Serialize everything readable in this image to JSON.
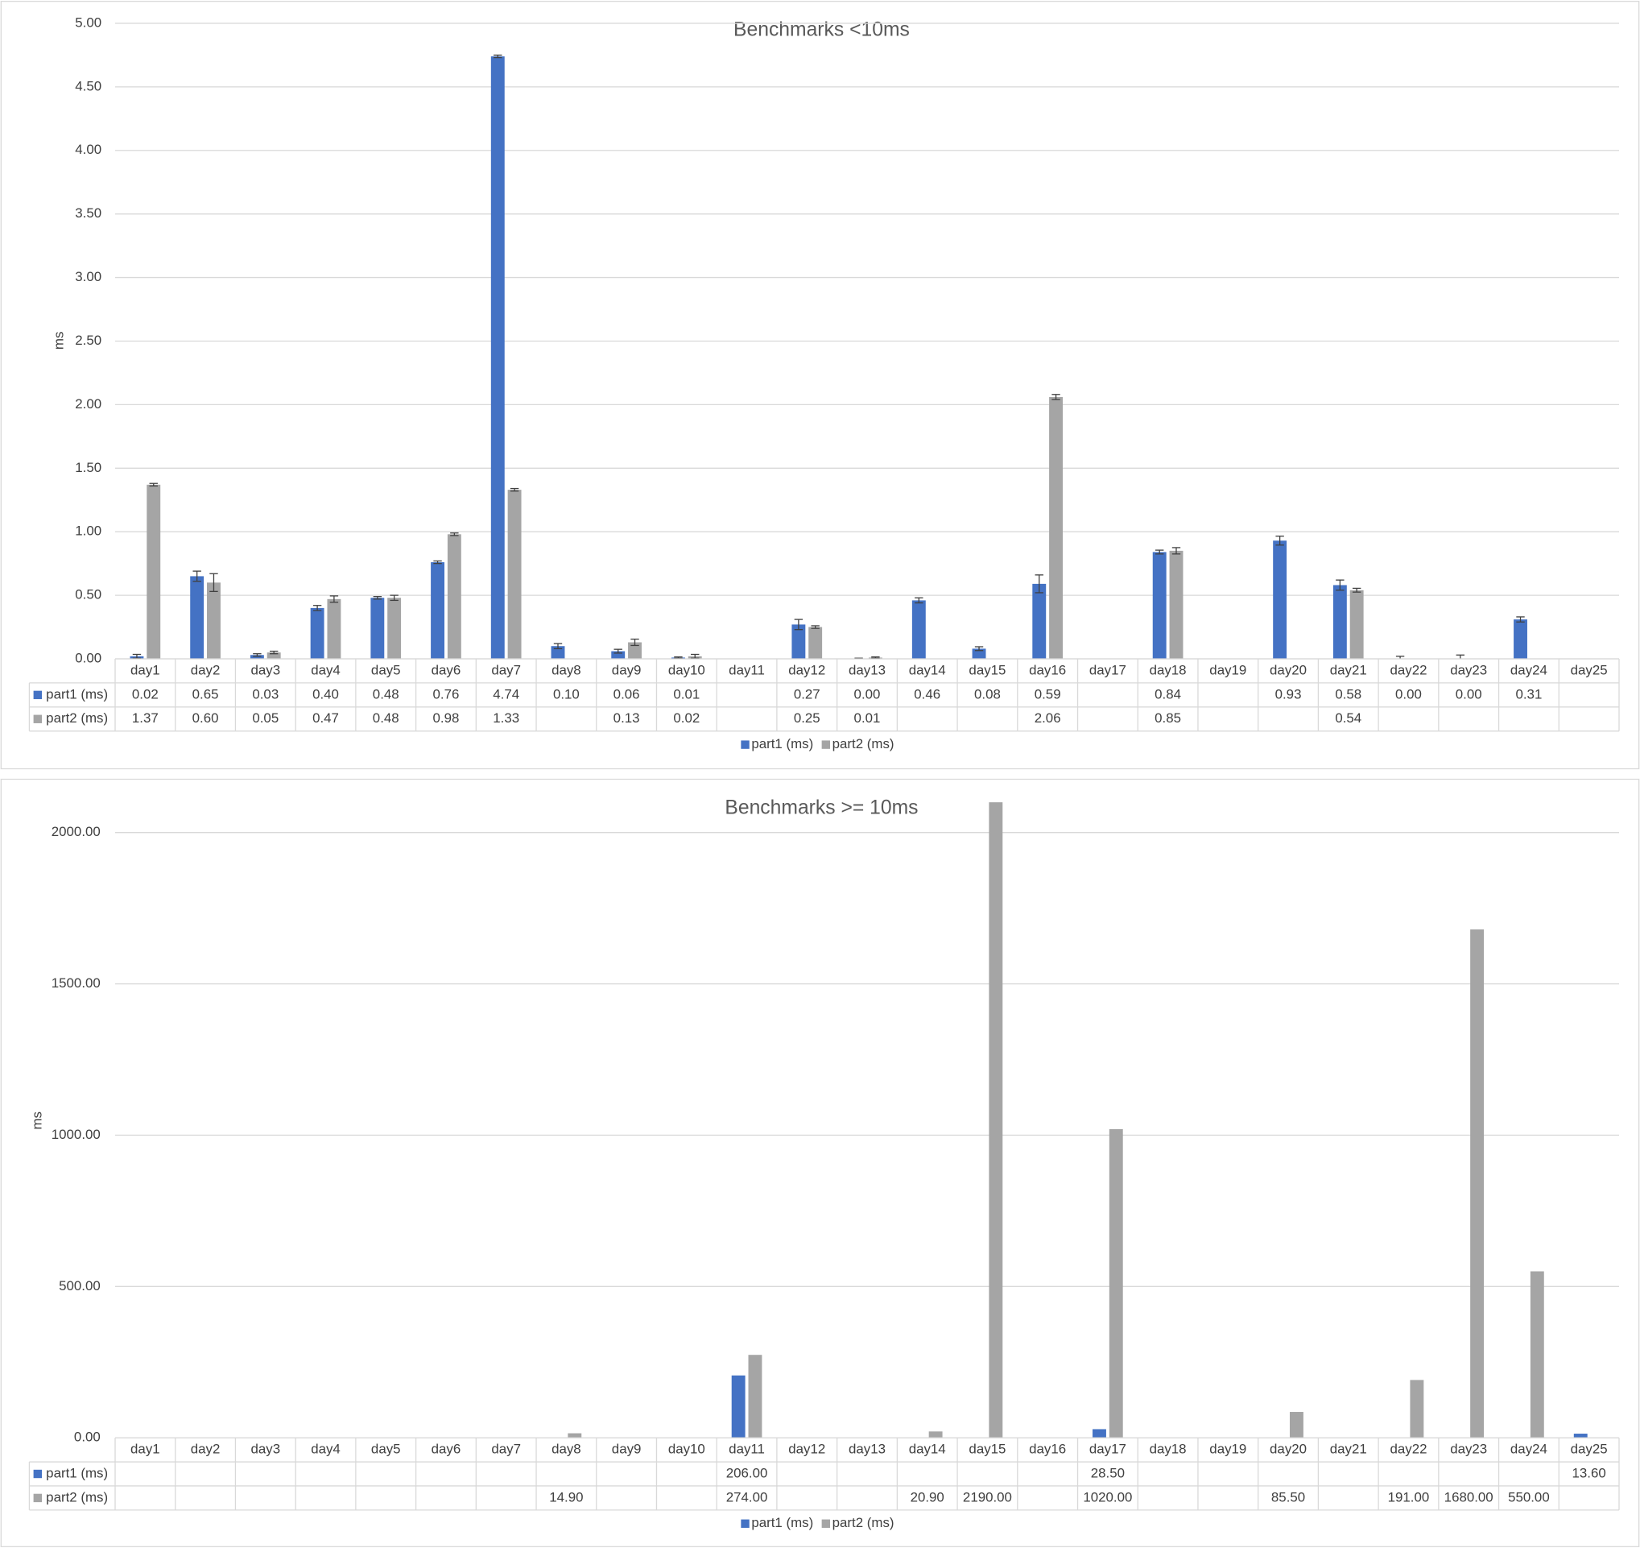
{
  "chart_data": [
    {
      "type": "bar",
      "title": "Benchmarks <10ms",
      "y_label": "ms",
      "categories": [
        "day1",
        "day2",
        "day3",
        "day4",
        "day5",
        "day6",
        "day7",
        "day8",
        "day9",
        "day10",
        "day11",
        "day12",
        "day13",
        "day14",
        "day15",
        "day16",
        "day17",
        "day18",
        "day19",
        "day20",
        "day21",
        "day22",
        "day23",
        "day24",
        "day25"
      ],
      "series": [
        {
          "name": "part1 (ms)",
          "color": "#4472c4",
          "values": [
            0.02,
            0.65,
            0.03,
            0.4,
            0.48,
            0.76,
            4.74,
            0.1,
            0.06,
            0.01,
            null,
            0.27,
            0.0,
            0.46,
            0.08,
            0.59,
            null,
            0.84,
            null,
            0.93,
            0.58,
            0.0,
            0.0,
            0.31,
            null
          ],
          "value_labels": [
            "0.02",
            "0.65",
            "0.03",
            "0.40",
            "0.48",
            "0.76",
            "4.74",
            "0.10",
            "0.06",
            "0.01",
            null,
            "0.27",
            "0.00",
            "0.46",
            "0.08",
            "0.59",
            null,
            "0.84",
            null,
            "0.93",
            "0.58",
            "0.00",
            "0.00",
            "0.31",
            null
          ],
          "errors": [
            0.015,
            0.04,
            0.01,
            0.02,
            0.01,
            0.01,
            0.01,
            0.02,
            0.015,
            0.005,
            null,
            0.04,
            0.005,
            0.02,
            0.015,
            0.07,
            null,
            0.015,
            null,
            0.035,
            0.04,
            0.02,
            0.03,
            0.02,
            null
          ]
        },
        {
          "name": "part2 (ms)",
          "color": "#a5a5a5",
          "values": [
            1.37,
            0.6,
            0.05,
            0.47,
            0.48,
            0.98,
            1.33,
            null,
            0.13,
            0.02,
            null,
            0.25,
            0.01,
            null,
            null,
            2.06,
            null,
            0.85,
            null,
            null,
            0.54,
            null,
            null,
            null,
            null
          ],
          "value_labels": [
            "1.37",
            "0.60",
            "0.05",
            "0.47",
            "0.48",
            "0.98",
            "1.33",
            null,
            "0.13",
            "0.02",
            null,
            "0.25",
            "0.01",
            null,
            null,
            "2.06",
            null,
            "0.85",
            null,
            null,
            "0.54",
            null,
            null,
            null,
            null
          ],
          "errors": [
            0.01,
            0.07,
            0.01,
            0.025,
            0.02,
            0.01,
            0.01,
            null,
            0.025,
            0.015,
            null,
            0.01,
            0.005,
            null,
            null,
            0.02,
            null,
            0.025,
            null,
            null,
            0.015,
            null,
            null,
            null,
            null
          ]
        }
      ],
      "ylim": [
        0,
        5
      ],
      "yticks": [
        {
          "value": 0,
          "label": "0.00"
        },
        {
          "value": 0.5,
          "label": "0.50"
        },
        {
          "value": 1,
          "label": "1.00"
        },
        {
          "value": 1.5,
          "label": "1.50"
        },
        {
          "value": 2,
          "label": "2.00"
        },
        {
          "value": 2.5,
          "label": "2.50"
        },
        {
          "value": 3,
          "label": "3.00"
        },
        {
          "value": 3.5,
          "label": "3.50"
        },
        {
          "value": 4,
          "label": "4.00"
        },
        {
          "value": 4.5,
          "label": "4.50"
        },
        {
          "value": 5,
          "label": "5.00"
        }
      ],
      "grid": true,
      "legend": "bottom"
    },
    {
      "type": "bar",
      "title": "Benchmarks >= 10ms",
      "y_label": "ms",
      "categories": [
        "day1",
        "day2",
        "day3",
        "day4",
        "day5",
        "day6",
        "day7",
        "day8",
        "day9",
        "day10",
        "day11",
        "day12",
        "day13",
        "day14",
        "day15",
        "day16",
        "day17",
        "day18",
        "day19",
        "day20",
        "day21",
        "day22",
        "day23",
        "day24",
        "day25"
      ],
      "series": [
        {
          "name": "part1 (ms)",
          "color": "#4472c4",
          "values": [
            null,
            null,
            null,
            null,
            null,
            null,
            null,
            null,
            null,
            null,
            206,
            null,
            null,
            null,
            null,
            null,
            28.5,
            null,
            null,
            null,
            null,
            null,
            null,
            null,
            13.6
          ],
          "value_labels": [
            null,
            null,
            null,
            null,
            null,
            null,
            null,
            null,
            null,
            null,
            "206.00",
            null,
            null,
            null,
            null,
            null,
            "28.50",
            null,
            null,
            null,
            null,
            null,
            null,
            null,
            "13.60"
          ]
        },
        {
          "name": "part2 (ms)",
          "color": "#a5a5a5",
          "values": [
            null,
            null,
            null,
            null,
            null,
            null,
            null,
            14.9,
            null,
            null,
            274,
            null,
            null,
            20.9,
            2190,
            null,
            1020,
            null,
            null,
            85.5,
            null,
            191,
            1680,
            550,
            null
          ],
          "value_labels": [
            null,
            null,
            null,
            null,
            null,
            null,
            null,
            "14.90",
            null,
            null,
            "274.00",
            null,
            null,
            "20.90",
            "2190.00",
            null,
            "1020.00",
            null,
            null,
            "85.50",
            null,
            "191.00",
            "1680.00",
            "550.00",
            null
          ]
        }
      ],
      "ylim": [
        0,
        2100
      ],
      "yticks": [
        {
          "value": 0,
          "label": "0.00"
        },
        {
          "value": 500,
          "label": "500.00"
        },
        {
          "value": 1000,
          "label": "1000.00"
        },
        {
          "value": 1500,
          "label": "1500.00"
        },
        {
          "value": 2000,
          "label": "2000.00"
        }
      ],
      "grid": true,
      "legend": "bottom"
    }
  ]
}
